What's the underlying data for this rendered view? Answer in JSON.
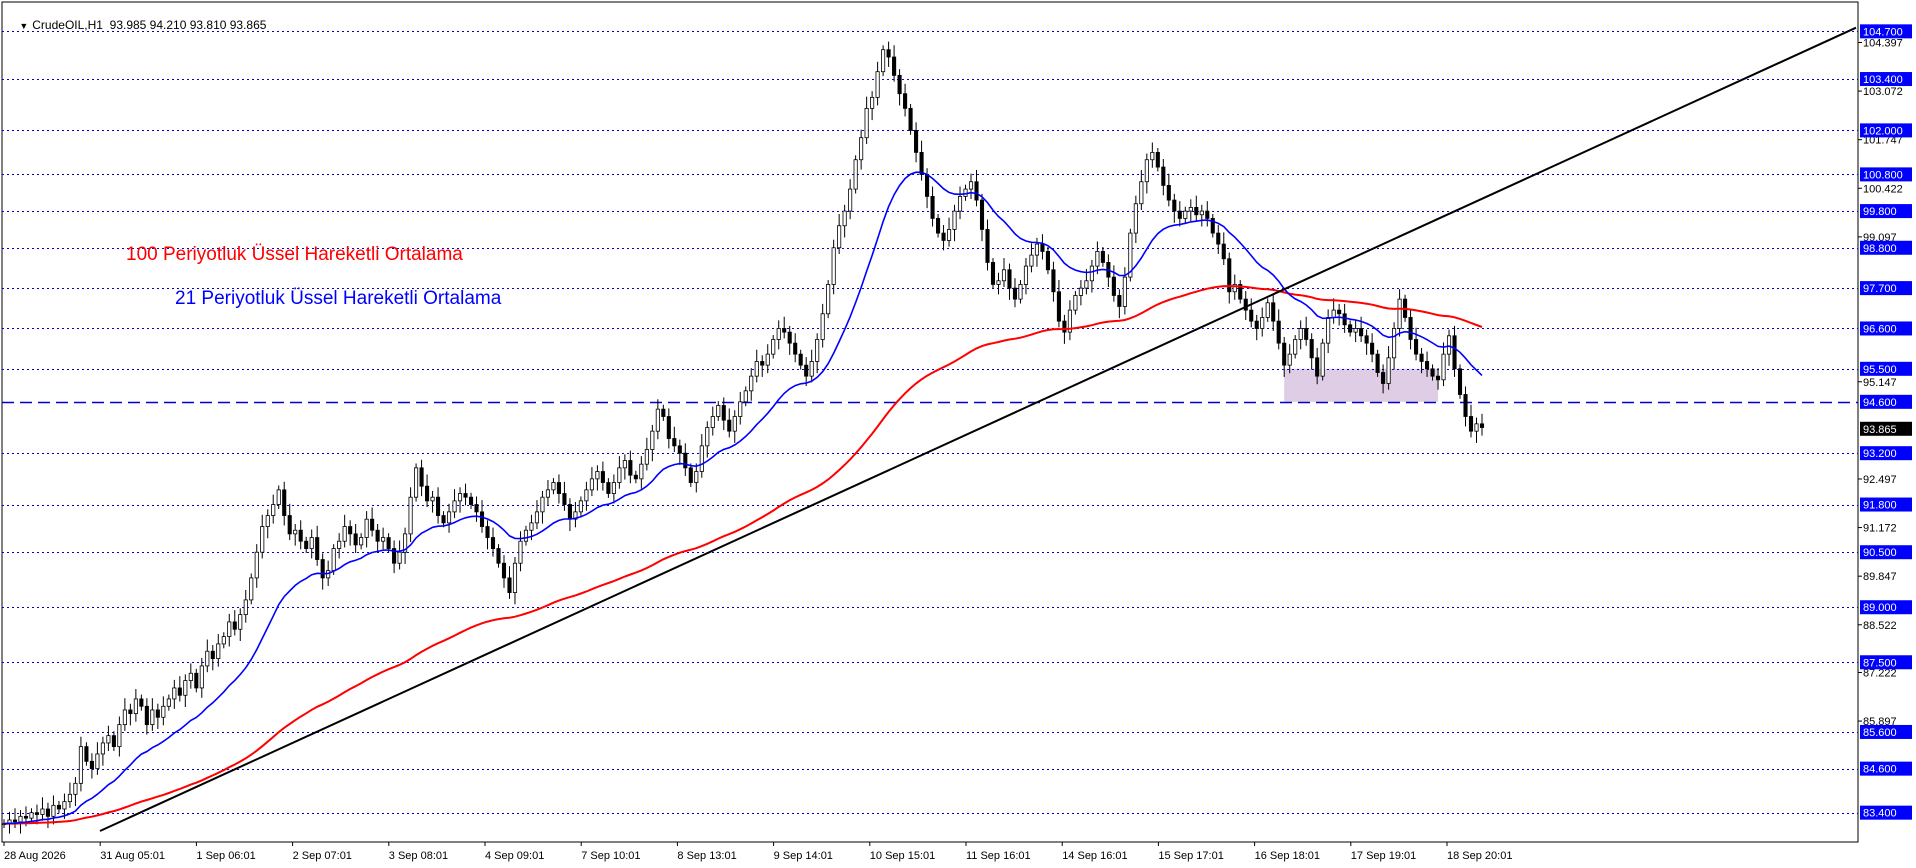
{
  "header": {
    "symbol": "CrudeOIL,H1",
    "ohlc": "93.985 94.210 93.810 93.865"
  },
  "annotations": {
    "ema100_label": "100 Periyotluk Üssel Hareketli Ortalama",
    "ema21_label": "21 Periyotluk Üssel Hareketli Ortalama"
  },
  "colors": {
    "background": "#ffffff",
    "candles": "#000000",
    "ema21": "#0000ff",
    "ema100": "#ff0000",
    "trendline": "#000000",
    "level_lines": "#0000cc",
    "level_label_bg": "#0000ff",
    "zone_fill": "#d8c4e0"
  },
  "chart_data": {
    "type": "candlestick",
    "title": "CrudeOIL,H1",
    "ylim": [
      82.6,
      105.5
    ],
    "x_tick_labels": [
      "28 Aug 2026",
      "31 Aug 05:01",
      "1 Sep 06:01",
      "2 Sep 07:01",
      "3 Sep 08:01",
      "4 Sep 09:01",
      "7 Sep 10:01",
      "8 Sep 13:01",
      "9 Sep 14:01",
      "10 Sep 15:01",
      "11 Sep 16:01",
      "14 Sep 16:01",
      "15 Sep 17:01",
      "16 Sep 18:01",
      "17 Sep 19:01",
      "18 Sep 20:01"
    ],
    "y_tick_labels": [
      "104.397",
      "103.072",
      "101.747",
      "100.422",
      "99.097",
      "95.147",
      "92.497",
      "91.172",
      "89.847",
      "88.522",
      "87.222",
      "85.897"
    ],
    "y_tick_values": [
      104.397,
      103.072,
      101.747,
      100.422,
      99.097,
      95.147,
      92.497,
      91.172,
      89.847,
      88.522,
      87.222,
      85.897
    ],
    "horizontal_levels": [
      {
        "value": 104.7,
        "label": "104.700"
      },
      {
        "value": 103.4,
        "label": "103.400"
      },
      {
        "value": 102.0,
        "label": "102.000"
      },
      {
        "value": 100.8,
        "label": "100.800"
      },
      {
        "value": 99.8,
        "label": "99.800"
      },
      {
        "value": 98.8,
        "label": "98.800"
      },
      {
        "value": 97.7,
        "label": "97.700"
      },
      {
        "value": 96.6,
        "label": "96.600"
      },
      {
        "value": 95.5,
        "label": "95.500"
      },
      {
        "value": 94.6,
        "label": "94.600",
        "style": "dashed"
      },
      {
        "value": 93.2,
        "label": "93.200"
      },
      {
        "value": 91.8,
        "label": "91.800"
      },
      {
        "value": 90.5,
        "label": "90.500"
      },
      {
        "value": 89.0,
        "label": "89.000"
      },
      {
        "value": 87.5,
        "label": "87.500"
      },
      {
        "value": 85.6,
        "label": "85.600"
      },
      {
        "value": 84.6,
        "label": "84.600"
      },
      {
        "value": 83.4,
        "label": "83.400"
      }
    ],
    "current_price": {
      "value": 93.865,
      "label": "93.865"
    },
    "support_zone": {
      "from_value": 94.6,
      "to_value": 95.5,
      "from_x": "17 Sep 03:00",
      "to_x": "18 Sep 23:00"
    },
    "trendline": {
      "from": {
        "x": "28 Aug 2026 05:00",
        "y": 82.9
      },
      "to": {
        "x": "21 Sep 10:00",
        "y": 104.8
      }
    },
    "closes": [
      83.1,
      83.2,
      83.15,
      83.3,
      83.25,
      83.4,
      83.35,
      83.5,
      83.3,
      83.6,
      83.5,
      83.7,
      83.9,
      84.2,
      85.2,
      84.8,
      84.6,
      85.0,
      85.3,
      85.5,
      85.2,
      85.8,
      86.2,
      86.1,
      86.5,
      86.3,
      85.8,
      86.2,
      86.0,
      86.3,
      86.5,
      86.8,
      86.6,
      87.0,
      87.2,
      86.8,
      87.4,
      87.8,
      87.6,
      88.0,
      88.2,
      88.6,
      88.4,
      88.8,
      89.2,
      89.8,
      90.5,
      91.2,
      91.5,
      91.8,
      92.2,
      91.5,
      91.0,
      91.1,
      90.8,
      90.6,
      90.9,
      90.3,
      89.8,
      90.0,
      90.6,
      90.8,
      91.2,
      91.0,
      90.7,
      90.9,
      91.4,
      91.1,
      90.8,
      90.9,
      90.6,
      90.2,
      90.5,
      91.0,
      92.0,
      92.8,
      92.3,
      91.9,
      92.0,
      91.5,
      91.3,
      91.6,
      91.9,
      92.1,
      92.0,
      91.8,
      91.6,
      91.2,
      90.9,
      90.6,
      90.2,
      89.8,
      89.4,
      90.2,
      90.8,
      91.1,
      91.3,
      91.6,
      92.0,
      92.2,
      92.4,
      92.1,
      91.8,
      91.4,
      91.6,
      91.9,
      92.2,
      92.5,
      92.7,
      92.4,
      92.1,
      92.4,
      92.8,
      93.0,
      92.6,
      92.5,
      92.9,
      93.3,
      93.8,
      94.4,
      94.2,
      93.6,
      93.4,
      93.2,
      92.8,
      92.4,
      92.7,
      93.4,
      93.9,
      94.2,
      94.5,
      94.1,
      93.8,
      94.2,
      94.6,
      94.9,
      95.3,
      95.7,
      95.6,
      95.9,
      96.3,
      96.6,
      96.5,
      96.2,
      95.9,
      95.6,
      95.3,
      95.7,
      96.3,
      97.0,
      97.8,
      98.8,
      99.4,
      99.8,
      100.4,
      101.2,
      101.8,
      102.6,
      102.9,
      103.6,
      104.2,
      104.0,
      103.5,
      103.0,
      102.6,
      102.0,
      101.4,
      100.8,
      100.2,
      99.6,
      99.2,
      99.0,
      99.3,
      99.8,
      100.2,
      100.4,
      100.6,
      100.1,
      99.3,
      98.4,
      97.8,
      97.9,
      98.2,
      97.7,
      97.4,
      97.8,
      98.3,
      98.6,
      98.9,
      98.7,
      98.2,
      97.6,
      96.8,
      96.5,
      97.1,
      97.5,
      97.7,
      97.9,
      98.3,
      98.7,
      98.4,
      98.0,
      97.5,
      97.2,
      98.0,
      99.2,
      100.0,
      100.6,
      101.2,
      101.4,
      101.0,
      100.5,
      100.1,
      99.8,
      99.6,
      99.8,
      99.9,
      99.7,
      99.8,
      99.6,
      99.2,
      98.9,
      98.5,
      97.6,
      97.8,
      97.4,
      97.1,
      96.8,
      96.6,
      96.9,
      97.3,
      96.8,
      96.2,
      95.6,
      95.9,
      96.3,
      96.6,
      96.3,
      95.8,
      95.3,
      96.2,
      96.9,
      97.1,
      97.0,
      96.7,
      96.5,
      96.6,
      96.4,
      96.2,
      95.9,
      95.4,
      95.1,
      95.8,
      96.6,
      97.4,
      96.9,
      96.3,
      95.9,
      95.7,
      95.5,
      95.3,
      95.2,
      95.9,
      96.4,
      95.5,
      94.8,
      94.2,
      93.8,
      94.0,
      93.9
    ],
    "ema21_color": "#0000ff",
    "ema100_color": "#ff0000"
  }
}
